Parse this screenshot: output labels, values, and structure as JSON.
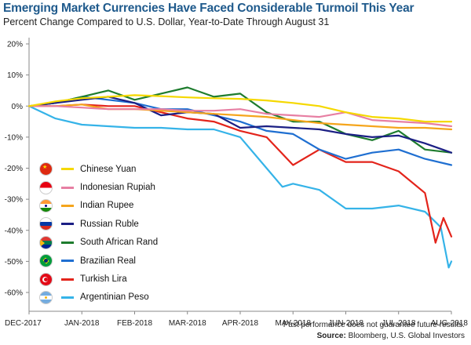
{
  "title": "Emerging Market Currencies Have Faced Considerable Turmoil This Year",
  "subtitle": "Percent Change Compared to U.S. Dollar, Year-to-Date Through August 31",
  "footnote": "Past performance does not guarantee future results.",
  "source_label": "Source:",
  "source_text": " Bloomberg, U.S. Global Investors",
  "chart_data": {
    "type": "line",
    "x_ticks": [
      "DEC-2017",
      "JAN-2018",
      "FEB-2018",
      "MAR-2018",
      "APR-2018",
      "MAY-2018",
      "JUN-2018",
      "JUL-2018",
      "AUG-2018"
    ],
    "y_ticks": [
      "20%",
      "10%",
      "0%",
      "-10%",
      "-20%",
      "-30%",
      "-40%",
      "-50%",
      "-60%"
    ],
    "ylim": [
      -62,
      22
    ],
    "y_unit": "%",
    "grid": false,
    "legend_position": "left",
    "x_unit": "month index (0 = Dec-2017 end, 8 = Aug-2018 end)",
    "series": [
      {
        "name": "Chinese Yuan",
        "color": "#f5d800",
        "flag": "flag-china-icon",
        "x": [
          0,
          0.5,
          1,
          1.5,
          2,
          2.5,
          3,
          3.5,
          4,
          4.5,
          5,
          5.5,
          6,
          6.5,
          7,
          7.5,
          8
        ],
        "values": [
          0,
          1.5,
          2.5,
          3,
          3.5,
          3.2,
          2.8,
          2.5,
          2.3,
          1.8,
          1,
          0,
          -2,
          -3.5,
          -4,
          -5,
          -5
        ]
      },
      {
        "name": "Indonesian Rupiah",
        "color": "#e77fa3",
        "flag": "flag-indonesia-icon",
        "x": [
          0,
          0.5,
          1,
          1.5,
          2,
          2.5,
          3,
          3.5,
          4,
          4.5,
          5,
          5.5,
          6,
          6.5,
          7,
          7.5,
          8
        ],
        "values": [
          0,
          0,
          -0.5,
          -1,
          -1,
          -1,
          -1.5,
          -1.5,
          -1,
          -2.5,
          -3,
          -3.5,
          -2,
          -4.5,
          -5,
          -5.5,
          -6.5
        ]
      },
      {
        "name": "Indian Rupee",
        "color": "#f5a51c",
        "flag": "flag-india-icon",
        "x": [
          0,
          0.5,
          1,
          1.5,
          2,
          2.5,
          3,
          3.5,
          4,
          4.5,
          5,
          5.5,
          6,
          6.5,
          7,
          7.5,
          8
        ],
        "values": [
          0,
          0,
          0.5,
          -1,
          -1,
          -1.5,
          -2,
          -2.5,
          -3,
          -3.5,
          -4.5,
          -5.5,
          -6,
          -6.5,
          -7,
          -7,
          -7.5
        ]
      },
      {
        "name": "Russian Ruble",
        "color": "#1b1f84",
        "flag": "flag-russia-icon",
        "x": [
          0,
          0.5,
          1,
          1.5,
          2,
          2.5,
          3,
          3.5,
          4,
          4.5,
          5,
          5.5,
          6,
          6.5,
          7,
          7.5,
          8
        ],
        "values": [
          0,
          1,
          2,
          3,
          1,
          -3,
          -2,
          -2.5,
          -7,
          -6.5,
          -7,
          -7.5,
          -9,
          -10,
          -9.5,
          -12,
          -15
        ]
      },
      {
        "name": "South African Rand",
        "color": "#1e7c2e",
        "flag": "flag-south-africa-icon",
        "x": [
          0,
          0.5,
          1,
          1.5,
          2,
          2.5,
          3,
          3.5,
          4,
          4.5,
          5,
          5.5,
          6,
          6.5,
          7,
          7.5,
          8
        ],
        "values": [
          0,
          1,
          3,
          5,
          2,
          4,
          6,
          3,
          4,
          -2,
          -5,
          -5,
          -9,
          -11,
          -8,
          -14,
          -15
        ]
      },
      {
        "name": "Brazilian Real",
        "color": "#1f6fd1",
        "flag": "flag-brazil-icon",
        "x": [
          0,
          0.5,
          1,
          1.5,
          2,
          2.5,
          3,
          3.5,
          4,
          4.5,
          5,
          5.5,
          6,
          6.5,
          7,
          7.5,
          8
        ],
        "values": [
          0,
          1,
          3,
          2,
          1,
          -1,
          -1,
          -3,
          -5,
          -8,
          -9,
          -14,
          -17,
          -15,
          -14,
          -17,
          -19
        ]
      },
      {
        "name": "Turkish Lira",
        "color": "#e3241b",
        "flag": "flag-turkey-icon",
        "x": [
          0,
          0.5,
          1,
          1.5,
          2,
          2.5,
          3,
          3.5,
          4,
          4.5,
          5,
          5.5,
          6,
          6.5,
          7,
          7.5,
          7.7,
          7.85,
          8
        ],
        "values": [
          0,
          0,
          0.5,
          0,
          0,
          -2,
          -4,
          -5,
          -8,
          -10,
          -19,
          -14,
          -18,
          -18,
          -21,
          -28,
          -44,
          -36,
          -42
        ]
      },
      {
        "name": "Argentinian Peso",
        "color": "#35b3e8",
        "flag": "flag-argentina-icon",
        "x": [
          0,
          0.5,
          1,
          1.5,
          2,
          2.5,
          3,
          3.5,
          4,
          4.5,
          4.8,
          5,
          5.5,
          6,
          6.5,
          7,
          7.5,
          7.8,
          7.95,
          8
        ],
        "values": [
          0,
          -4,
          -6,
          -6.5,
          -7,
          -7,
          -7.5,
          -7.5,
          -10,
          -20,
          -26,
          -25,
          -27,
          -33,
          -33,
          -32,
          -34,
          -39,
          -52,
          -50
        ]
      }
    ]
  }
}
